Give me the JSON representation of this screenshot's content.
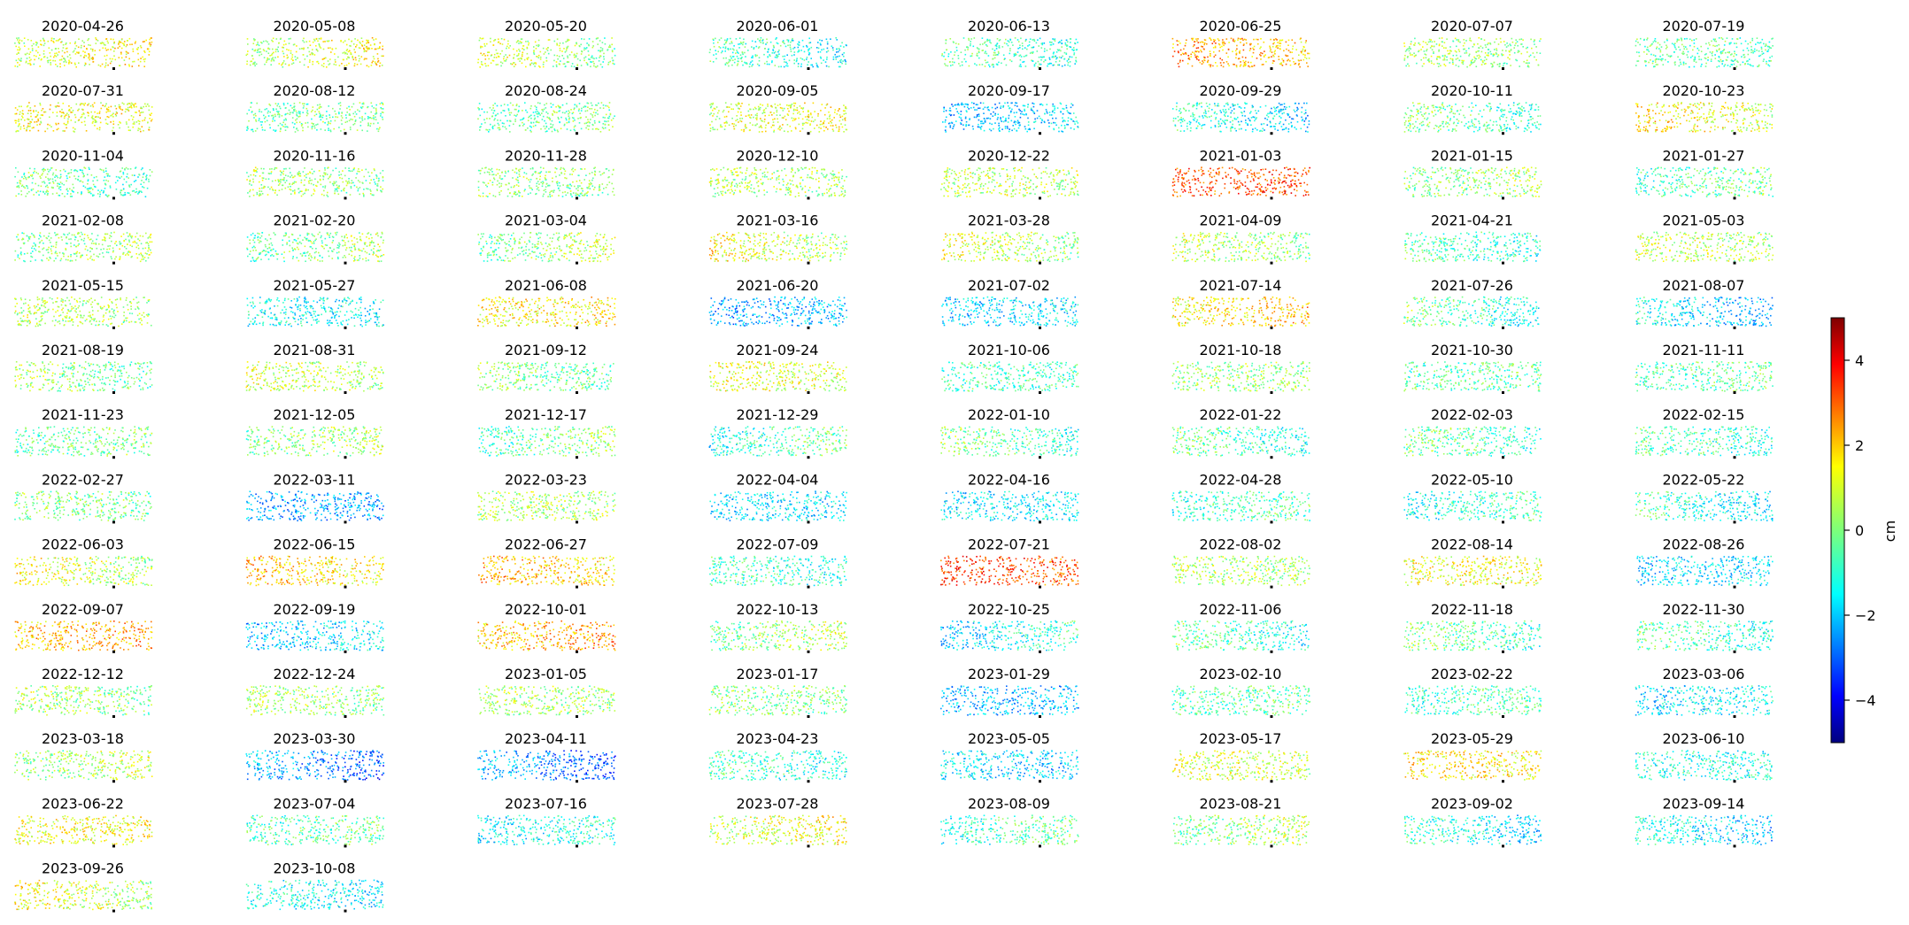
{
  "chart_data": {
    "type": "heatmap",
    "title": "",
    "layout": {
      "rows": 14,
      "cols": 8
    },
    "dates": [
      "2020-04-26",
      "2020-05-08",
      "2020-05-20",
      "2020-06-01",
      "2020-06-13",
      "2020-06-25",
      "2020-07-07",
      "2020-07-19",
      "2020-07-31",
      "2020-08-12",
      "2020-08-24",
      "2020-09-05",
      "2020-09-17",
      "2020-09-29",
      "2020-10-11",
      "2020-10-23",
      "2020-11-04",
      "2020-11-16",
      "2020-11-28",
      "2020-12-10",
      "2020-12-22",
      "2021-01-03",
      "2021-01-15",
      "2021-01-27",
      "2021-02-08",
      "2021-02-20",
      "2021-03-04",
      "2021-03-16",
      "2021-03-28",
      "2021-04-09",
      "2021-04-21",
      "2021-05-03",
      "2021-05-15",
      "2021-05-27",
      "2021-06-08",
      "2021-06-20",
      "2021-07-02",
      "2021-07-14",
      "2021-07-26",
      "2021-08-07",
      "2021-08-19",
      "2021-08-31",
      "2021-09-12",
      "2021-09-24",
      "2021-10-06",
      "2021-10-18",
      "2021-10-30",
      "2021-11-11",
      "2021-11-23",
      "2021-12-05",
      "2021-12-17",
      "2021-12-29",
      "2022-01-10",
      "2022-01-22",
      "2022-02-03",
      "2022-02-15",
      "2022-02-27",
      "2022-03-11",
      "2022-03-23",
      "2022-04-04",
      "2022-04-16",
      "2022-04-28",
      "2022-05-10",
      "2022-05-22",
      "2022-06-03",
      "2022-06-15",
      "2022-06-27",
      "2022-07-09",
      "2022-07-21",
      "2022-08-02",
      "2022-08-14",
      "2022-08-26",
      "2022-09-07",
      "2022-09-19",
      "2022-10-01",
      "2022-10-13",
      "2022-10-25",
      "2022-11-06",
      "2022-11-18",
      "2022-11-30",
      "2022-12-12",
      "2022-12-24",
      "2023-01-05",
      "2023-01-17",
      "2023-01-29",
      "2023-02-10",
      "2023-02-22",
      "2023-03-06",
      "2023-03-18",
      "2023-03-30",
      "2023-04-11",
      "2023-04-23",
      "2023-05-05",
      "2023-05-17",
      "2023-05-29",
      "2023-06-10",
      "2023-06-22",
      "2023-07-04",
      "2023-07-16",
      "2023-07-28",
      "2023-08-09",
      "2023-08-21",
      "2023-09-02",
      "2023-09-14",
      "2023-09-26",
      "2023-10-08"
    ],
    "panel_mean_cm": [
      1.0,
      0.8,
      0.4,
      -0.8,
      -0.6,
      2.0,
      0.2,
      -0.4,
      1.2,
      -0.2,
      -0.2,
      1.0,
      -1.8,
      -1.2,
      -0.4,
      1.2,
      -0.4,
      0.2,
      0.0,
      0.4,
      0.6,
      3.0,
      0.2,
      -0.4,
      0.2,
      0.0,
      0.2,
      0.8,
      0.6,
      0.4,
      -0.6,
      0.6,
      0.4,
      -1.2,
      1.4,
      -2.0,
      -1.6,
      1.6,
      -0.6,
      -1.6,
      0.0,
      0.6,
      -0.2,
      1.0,
      -0.6,
      0.2,
      -0.4,
      -0.4,
      -0.2,
      0.2,
      -0.2,
      -0.6,
      -0.4,
      -0.6,
      -0.4,
      -0.6,
      0.0,
      -2.2,
      0.4,
      -1.6,
      -1.4,
      -0.6,
      -0.8,
      -1.0,
      0.8,
      1.6,
      1.8,
      -0.8,
      3.0,
      0.4,
      1.2,
      -1.6,
      2.0,
      -1.6,
      2.0,
      0.2,
      -1.2,
      -0.6,
      -0.4,
      -0.6,
      0.2,
      0.2,
      0.4,
      0.0,
      -2.0,
      -0.4,
      -0.6,
      -1.4,
      0.4,
      -2.4,
      -2.4,
      -0.8,
      -1.6,
      0.8,
      1.4,
      -1.0,
      1.2,
      -0.4,
      -1.2,
      1.0,
      -0.6,
      0.2,
      -1.2,
      -1.4,
      0.8,
      -1.2
    ],
    "colorbar": {
      "colormap": "jet",
      "range": [
        -5,
        5
      ],
      "ticks": [
        "4",
        "2",
        "0",
        "−2",
        "−4"
      ],
      "tick_values": [
        4,
        2,
        0,
        -2,
        -4
      ],
      "label": "cm"
    }
  }
}
